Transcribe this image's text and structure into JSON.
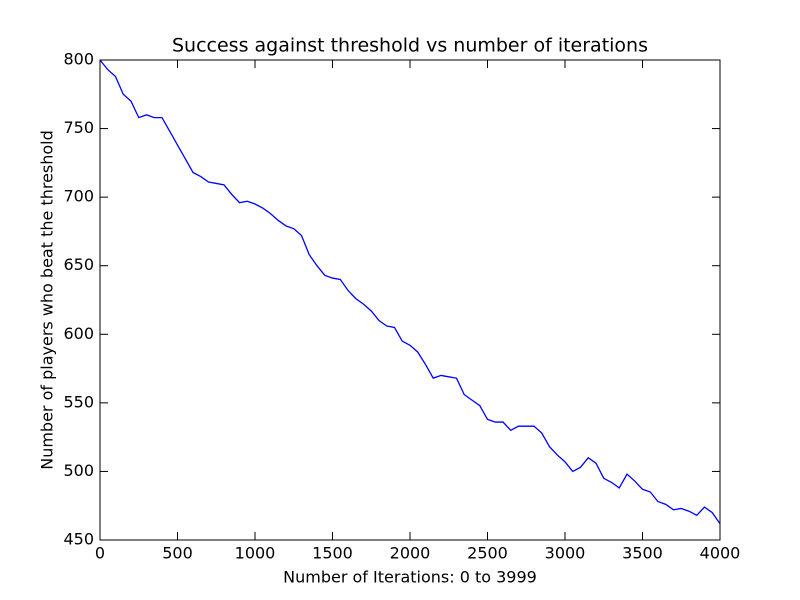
{
  "chart_data": {
    "type": "line",
    "title": "Success against threshold vs number of iterations",
    "x_label": "Number of Iterations: 0 to 3999",
    "y_label": "Number of players who beat the threshold",
    "x": [
      0,
      50,
      100,
      150,
      200,
      250,
      300,
      350,
      400,
      450,
      500,
      550,
      600,
      650,
      700,
      750,
      800,
      850,
      900,
      950,
      1000,
      1050,
      1100,
      1150,
      1200,
      1250,
      1300,
      1350,
      1400,
      1450,
      1500,
      1550,
      1600,
      1650,
      1700,
      1750,
      1800,
      1850,
      1900,
      1950,
      2000,
      2050,
      2100,
      2150,
      2200,
      2250,
      2300,
      2350,
      2400,
      2450,
      2500,
      2550,
      2600,
      2650,
      2700,
      2750,
      2800,
      2850,
      2900,
      2950,
      3000,
      3050,
      3100,
      3150,
      3200,
      3250,
      3300,
      3350,
      3400,
      3450,
      3500,
      3550,
      3600,
      3650,
      3700,
      3750,
      3800,
      3850,
      3900,
      3950,
      3999
    ],
    "values": [
      800,
      793,
      788,
      775,
      770,
      758,
      760,
      758,
      758,
      748,
      738,
      728,
      718,
      715,
      711,
      710,
      709,
      702,
      696,
      697,
      695,
      692,
      688,
      683,
      679,
      677,
      672,
      658,
      650,
      643,
      641,
      640,
      632,
      626,
      622,
      617,
      610,
      606,
      605,
      595,
      592,
      587,
      578,
      568,
      570,
      569,
      568,
      556,
      552,
      548,
      538,
      536,
      536,
      530,
      533,
      533,
      533,
      528,
      518,
      512,
      507,
      500,
      503,
      510,
      506,
      495,
      492,
      488,
      498,
      493,
      487,
      485,
      478,
      476,
      472,
      473,
      471,
      468,
      474,
      470,
      462
    ],
    "color": "#0000ff",
    "xlim": [
      0,
      4000
    ],
    "xticks": [
      0,
      500,
      1000,
      1500,
      2000,
      2500,
      3000,
      3500,
      4000
    ],
    "ylim": [
      450,
      800
    ],
    "yticks": [
      450,
      500,
      550,
      600,
      650,
      700,
      750,
      800
    ],
    "grid": false
  }
}
